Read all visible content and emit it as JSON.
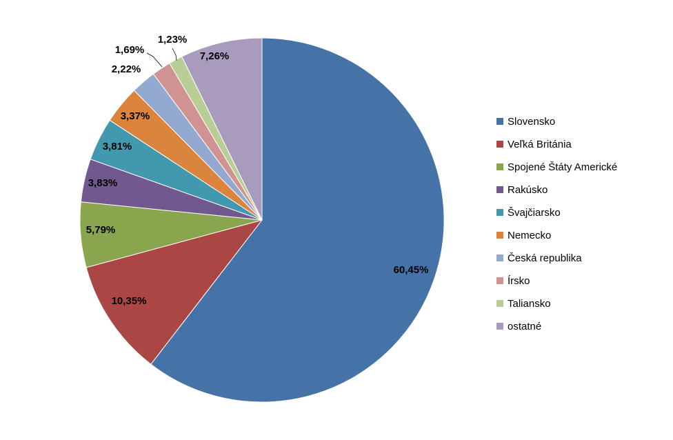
{
  "chart_data": {
    "type": "pie",
    "title": "",
    "start_angle_deg": 0,
    "direction": "clockwise",
    "legend_position": "right",
    "slices": [
      {
        "label": "Slovensko",
        "value": 60.45,
        "display": "60,45%",
        "color": "#4572A7"
      },
      {
        "label": "Veľká Británia",
        "value": 10.35,
        "display": "10,35%",
        "color": "#AA4643"
      },
      {
        "label": "Spojené Štáty Americké",
        "value": 5.79,
        "display": "5,79%",
        "color": "#89A54E"
      },
      {
        "label": "Rakúsko",
        "value": 3.83,
        "display": "3,83%",
        "color": "#71588F"
      },
      {
        "label": "Švajčiarsko",
        "value": 3.81,
        "display": "3,81%",
        "color": "#4198AF"
      },
      {
        "label": "Nemecko",
        "value": 3.37,
        "display": "3,37%",
        "color": "#DB843D"
      },
      {
        "label": "Česká republika",
        "value": 2.22,
        "display": "2,22%",
        "color": "#93A9CF"
      },
      {
        "label": "Írsko",
        "value": 1.69,
        "display": "1,69%",
        "color": "#D19392"
      },
      {
        "label": "Taliansko",
        "value": 1.23,
        "display": "1,23%",
        "color": "#B9CD96"
      },
      {
        "label": "ostatné",
        "value": 7.26,
        "display": "7,26%",
        "color": "#A99BBD"
      }
    ]
  }
}
